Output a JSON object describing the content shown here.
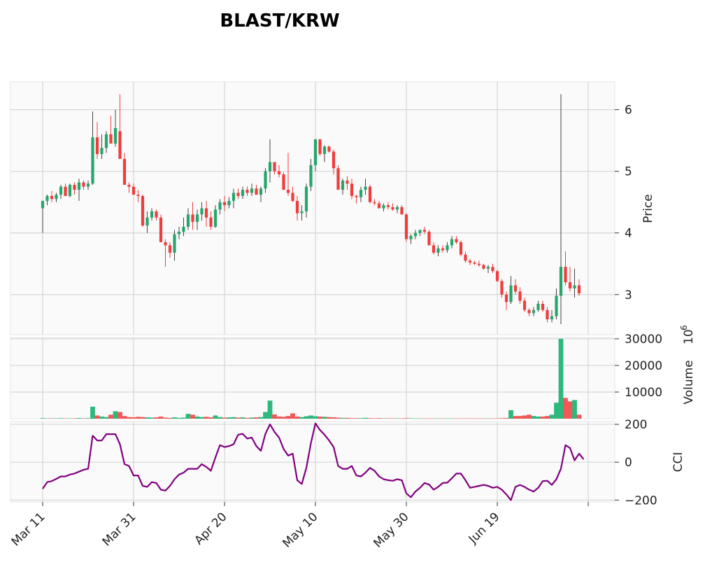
{
  "chart_data": {
    "title": "BLAST/KRW",
    "type": "candlestick",
    "colors": {
      "up": "#26a66b",
      "down": "#f03c3c",
      "volume_up": "#2db87d",
      "volume_down": "#f25858",
      "cci": "#800080",
      "panel_bg": "#fafafa",
      "grid": "#d6d6d6"
    },
    "x_ticks": [
      "Mar 11",
      "Mar 31",
      "Apr 20",
      "May 10",
      "May 30",
      "Jun 19"
    ],
    "price_panel": {
      "ylabel": "Price",
      "ticks": [
        "3",
        "4",
        "5",
        "6"
      ],
      "ylim": [
        2.35,
        6.45
      ]
    },
    "volume_panel": {
      "ylabel": "Volume",
      "multiplier_label": "10",
      "multiplier_exp": "6",
      "ticks": [
        "10000",
        "20000",
        "30000"
      ],
      "ylim": [
        0,
        30500
      ]
    },
    "cci_panel": {
      "ylabel": "CCI",
      "ticks": [
        "200",
        "0",
        "−200"
      ],
      "ylim": [
        -210,
        215
      ]
    },
    "candles": [
      [
        4.4,
        4.52,
        4.0,
        4.52
      ],
      [
        4.52,
        4.62,
        4.45,
        4.6
      ],
      [
        4.6,
        4.68,
        4.5,
        4.55
      ],
      [
        4.55,
        4.65,
        4.5,
        4.62
      ],
      [
        4.62,
        4.78,
        4.55,
        4.75
      ],
      [
        4.75,
        4.8,
        4.6,
        4.6
      ],
      [
        4.6,
        4.8,
        4.58,
        4.78
      ],
      [
        4.78,
        4.82,
        4.62,
        4.7
      ],
      [
        4.7,
        4.88,
        4.52,
        4.82
      ],
      [
        4.82,
        4.85,
        4.7,
        4.75
      ],
      [
        4.75,
        4.85,
        4.7,
        4.8
      ],
      [
        4.8,
        5.97,
        4.78,
        5.55
      ],
      [
        5.55,
        5.8,
        5.2,
        5.28
      ],
      [
        5.28,
        5.6,
        5.2,
        5.38
      ],
      [
        5.38,
        5.65,
        5.3,
        5.6
      ],
      [
        5.6,
        5.9,
        5.45,
        5.45
      ],
      [
        5.45,
        6.0,
        5.4,
        5.7
      ],
      [
        5.65,
        6.25,
        5.2,
        5.2
      ],
      [
        5.2,
        5.3,
        4.8,
        4.78
      ],
      [
        4.78,
        4.82,
        4.65,
        4.75
      ],
      [
        4.75,
        4.8,
        4.65,
        4.62
      ],
      [
        4.62,
        4.7,
        4.5,
        4.6
      ],
      [
        4.6,
        4.62,
        4.1,
        4.12
      ],
      [
        4.12,
        4.35,
        4.0,
        4.25
      ],
      [
        4.25,
        4.4,
        4.2,
        4.35
      ],
      [
        4.35,
        4.38,
        4.2,
        4.25
      ],
      [
        4.25,
        4.3,
        3.85,
        3.85
      ],
      [
        3.85,
        3.9,
        3.45,
        3.8
      ],
      [
        3.8,
        3.85,
        3.6,
        3.68
      ],
      [
        3.68,
        4.05,
        3.55,
        3.98
      ],
      [
        3.98,
        4.1,
        3.9,
        4.02
      ],
      [
        4.02,
        4.25,
        3.95,
        4.1
      ],
      [
        4.1,
        4.4,
        4.05,
        4.3
      ],
      [
        4.3,
        4.5,
        4.05,
        4.18
      ],
      [
        4.18,
        4.38,
        4.05,
        4.3
      ],
      [
        4.3,
        4.5,
        4.2,
        4.4
      ],
      [
        4.4,
        4.52,
        4.1,
        4.25
      ],
      [
        4.25,
        4.35,
        4.05,
        4.1
      ],
      [
        4.1,
        4.45,
        4.08,
        4.38
      ],
      [
        4.38,
        4.55,
        4.3,
        4.5
      ],
      [
        4.5,
        4.6,
        4.35,
        4.45
      ],
      [
        4.45,
        4.58,
        4.4,
        4.52
      ],
      [
        4.52,
        4.72,
        4.4,
        4.65
      ],
      [
        4.65,
        4.72,
        4.55,
        4.6
      ],
      [
        4.6,
        4.75,
        4.55,
        4.7
      ],
      [
        4.7,
        4.75,
        4.6,
        4.65
      ],
      [
        4.65,
        4.8,
        4.6,
        4.72
      ],
      [
        4.72,
        4.78,
        4.62,
        4.62
      ],
      [
        4.62,
        4.75,
        4.5,
        4.72
      ],
      [
        4.72,
        5.05,
        4.65,
        5.0
      ],
      [
        5.0,
        5.52,
        4.82,
        5.15
      ],
      [
        5.15,
        5.15,
        4.95,
        5.0
      ],
      [
        5.0,
        5.1,
        4.9,
        4.95
      ],
      [
        4.95,
        4.98,
        4.7,
        4.7
      ],
      [
        4.7,
        5.3,
        4.6,
        4.65
      ],
      [
        4.65,
        4.75,
        4.5,
        4.52
      ],
      [
        4.52,
        4.6,
        4.2,
        4.32
      ],
      [
        4.32,
        4.45,
        4.2,
        4.35
      ],
      [
        4.35,
        4.8,
        4.25,
        4.75
      ],
      [
        4.75,
        5.2,
        4.68,
        5.1
      ],
      [
        5.1,
        5.52,
        5.0,
        5.52
      ],
      [
        5.52,
        5.52,
        5.25,
        5.28
      ],
      [
        5.28,
        5.42,
        5.15,
        5.4
      ],
      [
        5.4,
        5.42,
        5.3,
        5.32
      ],
      [
        5.32,
        5.35,
        4.95,
        5.05
      ],
      [
        5.05,
        5.1,
        4.7,
        4.7
      ],
      [
        4.7,
        4.88,
        4.62,
        4.85
      ],
      [
        4.85,
        4.92,
        4.7,
        4.8
      ],
      [
        4.8,
        4.88,
        4.55,
        4.6
      ],
      [
        4.6,
        4.62,
        4.48,
        4.58
      ],
      [
        4.58,
        4.75,
        4.5,
        4.7
      ],
      [
        4.7,
        4.88,
        4.62,
        4.75
      ],
      [
        4.75,
        4.78,
        4.48,
        4.5
      ],
      [
        4.5,
        4.55,
        4.45,
        4.48
      ],
      [
        4.48,
        4.52,
        4.4,
        4.4
      ],
      [
        4.4,
        4.48,
        4.35,
        4.45
      ],
      [
        4.45,
        4.5,
        4.38,
        4.42
      ],
      [
        4.42,
        4.48,
        4.36,
        4.38
      ],
      [
        4.38,
        4.45,
        4.32,
        4.42
      ],
      [
        4.42,
        4.45,
        4.3,
        4.3
      ],
      [
        4.3,
        4.32,
        3.85,
        3.9
      ],
      [
        3.9,
        3.98,
        3.82,
        3.95
      ],
      [
        3.95,
        4.05,
        3.9,
        4.0
      ],
      [
        4.0,
        4.05,
        3.95,
        4.05
      ],
      [
        4.05,
        4.1,
        3.98,
        4.02
      ],
      [
        4.02,
        4.05,
        3.8,
        3.8
      ],
      [
        3.8,
        3.85,
        3.65,
        3.68
      ],
      [
        3.68,
        3.8,
        3.62,
        3.75
      ],
      [
        3.75,
        3.8,
        3.68,
        3.72
      ],
      [
        3.72,
        3.85,
        3.68,
        3.8
      ],
      [
        3.8,
        3.95,
        3.75,
        3.9
      ],
      [
        3.9,
        3.95,
        3.82,
        3.85
      ],
      [
        3.85,
        3.88,
        3.62,
        3.65
      ],
      [
        3.65,
        3.7,
        3.52,
        3.55
      ],
      [
        3.55,
        3.58,
        3.48,
        3.52
      ],
      [
        3.52,
        3.55,
        3.48,
        3.5
      ],
      [
        3.5,
        3.55,
        3.45,
        3.48
      ],
      [
        3.48,
        3.5,
        3.4,
        3.42
      ],
      [
        3.42,
        3.48,
        3.35,
        3.45
      ],
      [
        3.45,
        3.5,
        3.35,
        3.38
      ],
      [
        3.38,
        3.4,
        3.2,
        3.22
      ],
      [
        3.22,
        3.25,
        2.95,
        3.0
      ],
      [
        3.0,
        3.05,
        2.75,
        2.88
      ],
      [
        2.88,
        3.3,
        2.85,
        3.15
      ],
      [
        3.15,
        3.25,
        3.0,
        3.05
      ],
      [
        3.05,
        3.12,
        2.85,
        2.9
      ],
      [
        2.9,
        2.95,
        2.72,
        2.75
      ],
      [
        2.75,
        2.78,
        2.65,
        2.7
      ],
      [
        2.7,
        2.8,
        2.65,
        2.75
      ],
      [
        2.75,
        2.9,
        2.72,
        2.85
      ],
      [
        2.85,
        2.9,
        2.72,
        2.75
      ],
      [
        2.75,
        2.8,
        2.55,
        2.6
      ],
      [
        2.6,
        2.75,
        2.55,
        2.65
      ],
      [
        2.65,
        3.1,
        2.6,
        2.98
      ],
      [
        2.98,
        6.25,
        2.52,
        3.45
      ],
      [
        3.45,
        3.7,
        3.15,
        3.2
      ],
      [
        3.2,
        3.45,
        3.05,
        3.1
      ],
      [
        3.1,
        3.42,
        2.95,
        3.15
      ],
      [
        3.15,
        3.25,
        2.98,
        3.02
      ]
    ],
    "volume": [
      200,
      100,
      150,
      120,
      180,
      100,
      120,
      100,
      250,
      150,
      200,
      4500,
      1200,
      800,
      600,
      1500,
      2800,
      2500,
      1000,
      600,
      500,
      700,
      600,
      500,
      400,
      500,
      800,
      400,
      300,
      500,
      300,
      400,
      1800,
      1500,
      800,
      600,
      700,
      500,
      1200,
      600,
      400,
      500,
      600,
      400,
      500,
      300,
      400,
      500,
      600,
      2500,
      6800,
      1600,
      800,
      700,
      1000,
      2000,
      800,
      600,
      900,
      1200,
      900,
      800,
      700,
      600,
      500,
      400,
      300,
      300,
      200,
      200,
      200,
      300,
      200,
      150,
      200,
      150,
      150,
      100,
      150,
      100,
      200,
      150,
      100,
      100,
      100,
      100,
      100,
      80,
      100,
      100,
      100,
      80,
      100,
      100,
      80,
      80,
      80,
      60,
      80,
      80,
      100,
      200,
      250,
      3200,
      1000,
      1000,
      1200,
      1500,
      1000,
      800,
      800,
      1000,
      1500,
      6000,
      30000,
      7800,
      6500,
      7000,
      1500
    ],
    "cci": [
      -140,
      -105,
      -100,
      -88,
      -75,
      -75,
      -65,
      -60,
      -50,
      -40,
      -35,
      140,
      115,
      115,
      148,
      148,
      148,
      95,
      -10,
      -20,
      -70,
      -70,
      -125,
      -130,
      -105,
      -110,
      -145,
      -150,
      -125,
      -90,
      -65,
      -55,
      -35,
      -35,
      -35,
      -10,
      -25,
      -45,
      25,
      90,
      80,
      85,
      95,
      145,
      150,
      125,
      130,
      85,
      60,
      150,
      200,
      160,
      130,
      70,
      35,
      45,
      -95,
      -115,
      -30,
      100,
      205,
      170,
      145,
      115,
      80,
      -20,
      -35,
      -35,
      -20,
      -70,
      -75,
      -55,
      -30,
      -45,
      -75,
      -90,
      -95,
      -98,
      -90,
      -95,
      -165,
      -185,
      -155,
      -135,
      -110,
      -118,
      -145,
      -130,
      -110,
      -108,
      -85,
      -60,
      -60,
      -95,
      -135,
      -130,
      -125,
      -120,
      -125,
      -135,
      -130,
      -145,
      -170,
      -200,
      -130,
      -120,
      -130,
      -145,
      -155,
      -135,
      -100,
      -98,
      -120,
      -90,
      -35,
      90,
      75,
      10,
      45,
      15
    ]
  }
}
